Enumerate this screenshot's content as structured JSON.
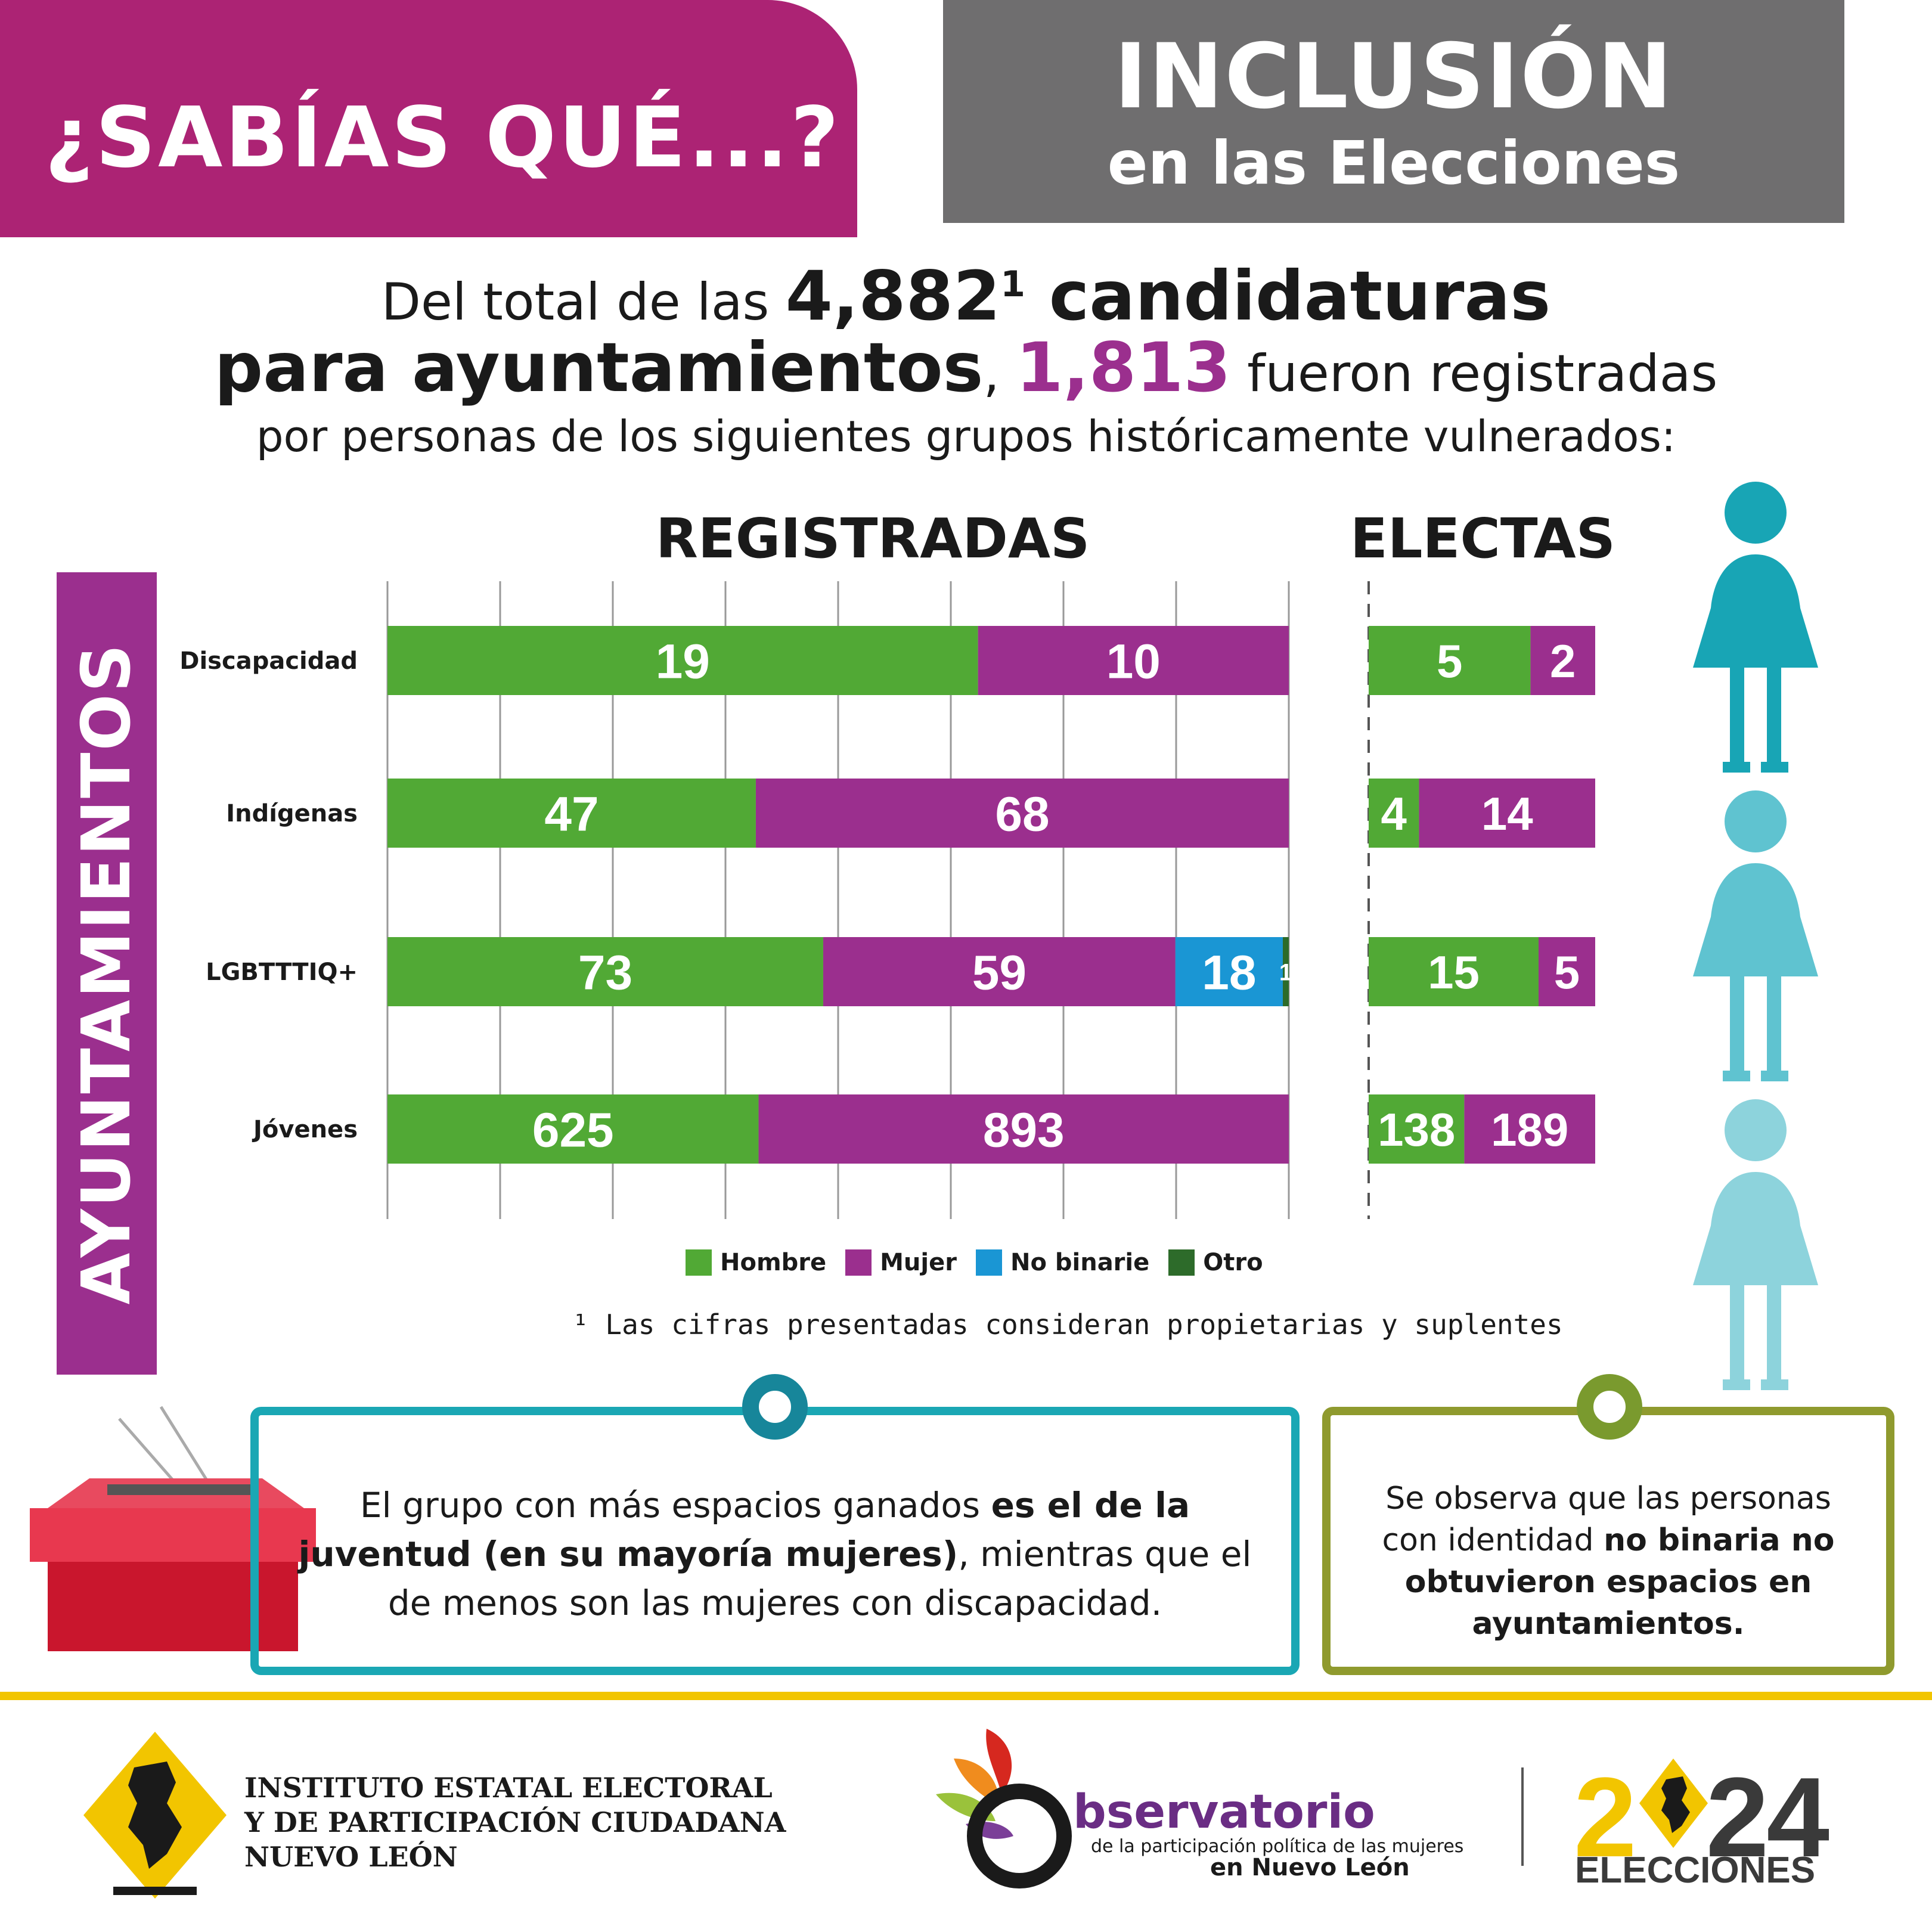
{
  "header": {
    "left_title": "¿SABÍAS QUÉ...?",
    "right_title": "INCLUSIÓN",
    "right_subtitle": "en las Elecciones"
  },
  "intro": {
    "line1_a": "Del total de las ",
    "line1_number": "4,882",
    "line1_sup": "1",
    "line1_b": " candidaturas",
    "line2_a": "para ayuntamientos",
    "line2_comma": ", ",
    "line2_number": "1,813",
    "line2_b": " fueron registradas",
    "line3": "por personas de los siguientes grupos históricamente vulnerados:"
  },
  "side_label": "AYUNTAMIENTOS",
  "colors": {
    "hombre": "#51a935",
    "mujer": "#9b2f8e",
    "no_binarie": "#1a96d4",
    "otro": "#2d6b2a",
    "magenta": "#ac2374",
    "teal": "#1aa7b4",
    "olive": "#8f9a2e",
    "yellow": "#f2c500"
  },
  "chart_data": [
    {
      "type": "bar",
      "orientation": "horizontal",
      "stacked": true,
      "normalized": true,
      "title": "REGISTRADAS",
      "categories": [
        "Discapacidad",
        "Indígenas",
        "LGBTTTIQ+",
        "Jóvenes"
      ],
      "series": [
        {
          "name": "Hombre",
          "values": [
            19,
            47,
            73,
            625
          ]
        },
        {
          "name": "Mujer",
          "values": [
            10,
            68,
            59,
            893
          ]
        },
        {
          "name": "No binarie",
          "values": [
            0,
            0,
            18,
            0
          ]
        },
        {
          "name": "Otro",
          "values": [
            0,
            0,
            1,
            0
          ]
        }
      ],
      "grid": true,
      "legend": "bottom"
    },
    {
      "type": "bar",
      "orientation": "horizontal",
      "stacked": true,
      "normalized": true,
      "title": "ELECTAS",
      "categories": [
        "Discapacidad",
        "Indígenas",
        "LGBTTTIQ+",
        "Jóvenes"
      ],
      "series": [
        {
          "name": "Hombre",
          "values": [
            5,
            4,
            15,
            138
          ]
        },
        {
          "name": "Mujer",
          "values": [
            2,
            14,
            5,
            189
          ]
        }
      ],
      "grid": false
    }
  ],
  "legend": [
    "Hombre",
    "Mujer",
    "No binarie",
    "Otro"
  ],
  "footnote": "¹ Las cifras presentadas consideran propietarias y suplentes",
  "notes": {
    "box1_a": "El grupo con más espacios ganados ",
    "box1_bold": "es el de la juventud (en su mayoría mujeres)",
    "box1_b": ", mientras que el de menos son las mujeres con discapacidad.",
    "box2_a": "Se observa que las personas con identidad ",
    "box2_bold": "no binaria no obtuvieron espacios en ayuntamientos."
  },
  "footer": {
    "iee_line1": "INSTITUTO ESTATAL ELECTORAL",
    "iee_line2": "Y DE PARTICIPACIÓN CIUDADANA",
    "iee_line3": "NUEVO LEÓN",
    "obs_title": "bservatorio",
    "obs_sub1": "de la participación política de las mujeres",
    "obs_sub2": "en Nuevo León",
    "year_2": "2",
    "year_24": "24",
    "elecciones": "ELECCIONES"
  }
}
